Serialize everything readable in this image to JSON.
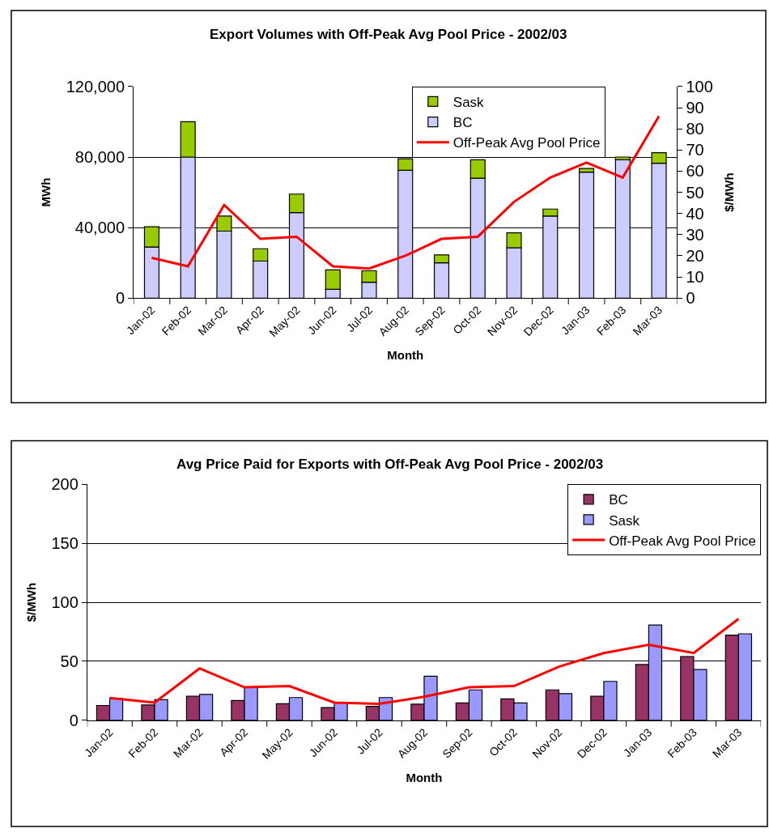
{
  "chart_data": [
    {
      "type": "bar",
      "stacked": true,
      "title": "Export Volumes with Off-Peak Avg Pool Price - 2002/03",
      "xlabel": "Month",
      "ylabel": "MWh",
      "y2label": "$/MWh",
      "categories": [
        "Jan-02",
        "Feb-02",
        "Mar-02",
        "Apr-02",
        "May-02",
        "Jun-02",
        "Jul-02",
        "Aug-02",
        "Sep-02",
        "Oct-02",
        "Nov-02",
        "Dec-02",
        "Jan-03",
        "Feb-03",
        "Mar-03"
      ],
      "series": [
        {
          "name": "BC",
          "color": "#ccccff",
          "values": [
            29000,
            80000,
            38000,
            21000,
            48500,
            5000,
            9000,
            72500,
            20000,
            68000,
            28500,
            46500,
            71500,
            78500,
            76500
          ]
        },
        {
          "name": "Sask",
          "color": "#99cc00",
          "values": [
            11500,
            20000,
            8500,
            7000,
            10500,
            11000,
            6500,
            6500,
            4500,
            10500,
            8500,
            4000,
            2000,
            1500,
            6000
          ]
        },
        {
          "name": "Off-Peak Avg Pool Price",
          "type": "line",
          "axis": "y2",
          "color": "#ff0000",
          "values": [
            19,
            15,
            44,
            28,
            29,
            15,
            14,
            20,
            28,
            29,
            45.5,
            57,
            64,
            57,
            86
          ]
        }
      ],
      "ylim": [
        0,
        120000
      ],
      "yticks": [
        0,
        {
          "value": 40000,
          "label": "40,000"
        },
        {
          "value": 80000,
          "label": "80,000"
        },
        {
          "value": 120000,
          "label": "120,000"
        }
      ],
      "y2lim": [
        0,
        100
      ],
      "y2ticks": [
        0,
        10,
        20,
        30,
        40,
        50,
        60,
        70,
        80,
        90,
        100
      ],
      "grid": "y",
      "legend": "top",
      "marker": "none",
      "line_style": "solid"
    },
    {
      "type": "bar",
      "title": "Avg Price Paid for Exports with Off-Peak Avg Pool Price - 2002/03",
      "xlabel": "Month",
      "ylabel": "$/MWh",
      "categories": [
        "Jan-02",
        "Feb-02",
        "Mar-02",
        "Apr-02",
        "May-02",
        "Jun-02",
        "Jul-02",
        "Aug-02",
        "Sep-02",
        "Oct-02",
        "Nov-02",
        "Dec-02",
        "Jan-03",
        "Feb-03",
        "Mar-03"
      ],
      "series": [
        {
          "name": "BC",
          "color": "#993366",
          "values": [
            12.6,
            13,
            20.4,
            16.8,
            14.1,
            10.8,
            11.9,
            13.7,
            14.8,
            18.2,
            25.8,
            20.4,
            47.3,
            54,
            72.2
          ]
        },
        {
          "name": "Sask",
          "color": "#9999ff",
          "values": [
            18.6,
            17.5,
            22,
            28,
            19.3,
            15.2,
            19.3,
            37.4,
            25.8,
            14.8,
            22.6,
            33,
            80.7,
            43,
            73.3
          ]
        },
        {
          "name": "Off-Peak Avg Pool Price",
          "type": "line",
          "color": "#ff0000",
          "values": [
            19,
            15,
            44,
            28,
            29,
            15,
            14,
            20,
            28,
            29,
            45.5,
            57,
            64,
            57,
            86
          ]
        }
      ],
      "ylim": [
        0,
        200
      ],
      "yticks": [
        0,
        50,
        100,
        150,
        200
      ],
      "grid": "y",
      "legend": "top right",
      "marker": "none",
      "line_style": "solid"
    }
  ]
}
